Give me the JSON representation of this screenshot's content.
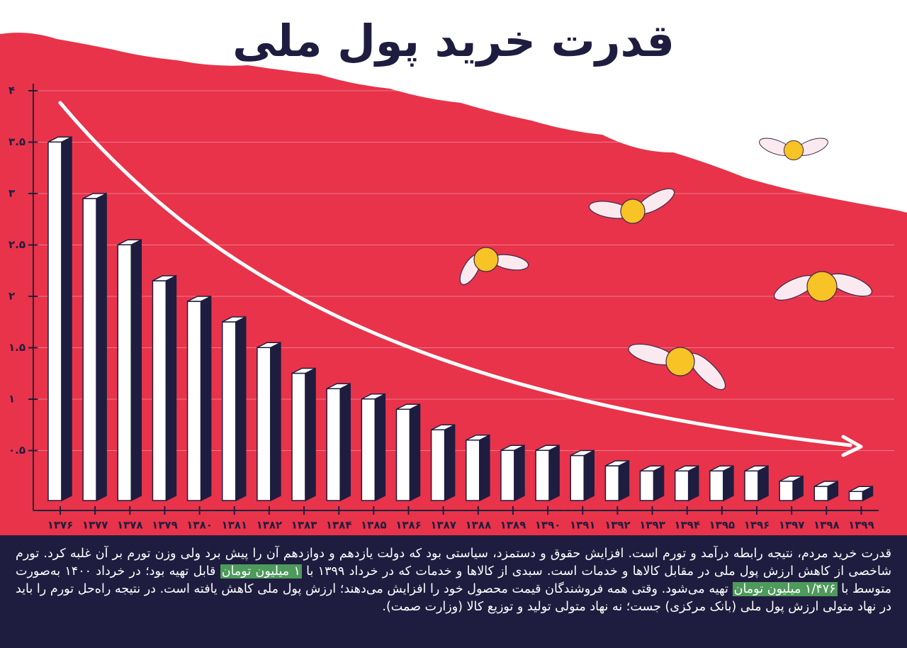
{
  "chart_data": {
    "type": "bar",
    "title": "قدرت خرید پول ملی",
    "categories": [
      "۱۳۷۶",
      "۱۳۷۷",
      "۱۳۷۸",
      "۱۳۷۹",
      "۱۳۸۰",
      "۱۳۸۱",
      "۱۳۸۲",
      "۱۳۸۳",
      "۱۳۸۴",
      "۱۳۸۵",
      "۱۳۸۶",
      "۱۳۸۷",
      "۱۳۸۸",
      "۱۳۸۹",
      "۱۳۹۰",
      "۱۳۹۱",
      "۱۳۹۲",
      "۱۳۹۳",
      "۱۳۹۴",
      "۱۳۹۵",
      "۱۳۹۶",
      "۱۳۹۷",
      "۱۳۹۸",
      "۱۳۹۹"
    ],
    "values": [
      3.55,
      3.0,
      2.55,
      2.2,
      2.0,
      1.8,
      1.55,
      1.3,
      1.15,
      1.05,
      0.95,
      0.75,
      0.65,
      0.55,
      0.55,
      0.5,
      0.4,
      0.35,
      0.35,
      0.35,
      0.35,
      0.25,
      0.2,
      0.15
    ],
    "color": "#ffffff",
    "side_color": "#1f1d3f",
    "background_color": "#e8334a",
    "ylim": [
      0,
      4
    ],
    "yticks": [
      {
        "value": 0.5,
        "label": "۰.۵"
      },
      {
        "value": 1,
        "label": "۱"
      },
      {
        "value": 1.5,
        "label": "۱.۵"
      },
      {
        "value": 2,
        "label": "۲"
      },
      {
        "value": 2.5,
        "label": "۲.۵"
      },
      {
        "value": 3,
        "label": "۳"
      },
      {
        "value": 3.5,
        "label": "۳.۵"
      },
      {
        "value": 4,
        "label": "۴"
      }
    ],
    "grid": true,
    "description": [
      {
        "text": "قدرت خرید مردم، نتیجه رابطه درآمد و تورم است. افزایش حقوق و دستمزد، سیاستی بود که دولت یازدهم و دوازدهم آن را پیش برد ولی وزن تورم بر آن غلبه کرد. تورم شاخصی از کاهش ارزش پول ملی در مقابل کالاها و خدمات است. سبدی از کالاها و خدمات که در خرداد ۱۳۹۹ با ",
        "highlight": false
      },
      {
        "text": "۱ میلیون تومان",
        "highlight": true
      },
      {
        "text": " قابل تهیه بود؛ در خرداد ۱۴۰۰ به‌صورت متوسط با ",
        "highlight": false
      },
      {
        "text": "۱/۴۷۶ میلیون تومان",
        "highlight": true
      },
      {
        "text": " تهیه می‌شود. وقتی همه فروشندگان قیمت محصول خود را افزایش می‌دهند؛ ارزش پول ملی کاهش یافته است. در نتیجه راه‌حل تورم را باید در نهاد متولی ارزش پول ملی (بانک مرکزی) جست؛ نه نهاد متولی تولید و توزیع کالا (وزارت صمت).",
        "highlight": false
      }
    ]
  }
}
